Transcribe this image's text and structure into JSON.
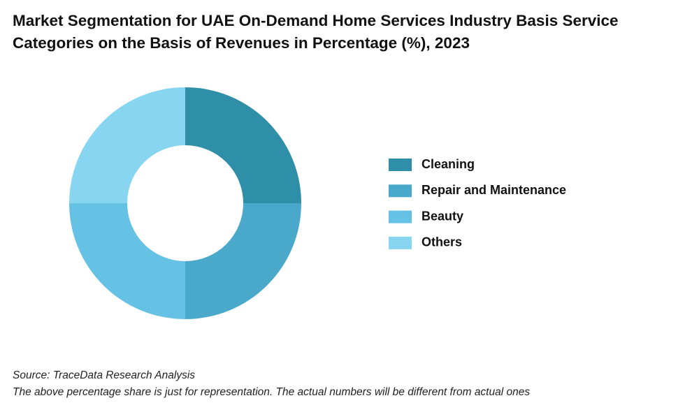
{
  "chart_data": {
    "type": "donut",
    "title": "Market Segmentation for UAE On-Demand Home Services Industry Basis Service Categories on the Basis of Revenues in Percentage (%), 2023",
    "categories": [
      "Cleaning",
      "Repair and Maintenance",
      "Beauty",
      "Others"
    ],
    "values": [
      25,
      25,
      25,
      25
    ],
    "colors": [
      "#2f8fa8",
      "#4aa9ca",
      "#66c2e4",
      "#87d5f0"
    ],
    "source": "Source: TraceData Research Analysis",
    "note": "The above percentage share is just for representation. The actual numbers will be different from actual ones"
  }
}
